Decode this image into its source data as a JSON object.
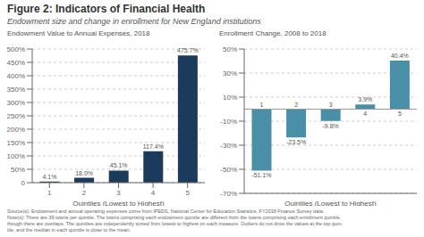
{
  "title": "Figure 2: Indicators of Financial Health",
  "subtitle": "Endowment size and change in enrollment for New England institutions",
  "annotations": [
    "Source(s): Endowment and annual operating expenses come from IPEDS, National Center for Education Statistics, FY2018 Finance Survey data.",
    "Note(s): There are 39 towns per quintile. The towns comprising each endowment quintile are different from the towns comprising each enrollment quintile,",
    "though there are overlaps. The quintiles are independently sorted from lowest to highest on each measure. Outliers do not drive the values at the top quin-",
    "tile, and the median in each quintile is close to the mean."
  ],
  "chart_data": [
    {
      "type": "bar",
      "title": "Endowment Value to Annual Expenses, 2018",
      "xlabel": "Quintiles (Lowest to Highest)",
      "categories": [
        "1",
        "2",
        "3",
        "4",
        "5"
      ],
      "values": [
        4.1,
        18.0,
        45.1,
        117.4,
        475.7
      ],
      "value_labels": [
        "4.1%",
        "18.0%",
        "45.1%",
        "117.4%",
        "475.7%"
      ],
      "color": "#1b3a5c",
      "ylim": [
        0,
        500
      ],
      "yticks": [
        0,
        {
          "value": 50,
          "label": "50%"
        },
        {
          "value": 100,
          "label": "100%"
        },
        {
          "value": 150,
          "label": "150%"
        },
        {
          "value": 200,
          "label": "200%"
        },
        {
          "value": 250,
          "label": "250%"
        },
        {
          "value": 300,
          "label": "300%"
        },
        {
          "value": 350,
          "label": "350%"
        },
        {
          "value": 400,
          "label": "400%"
        },
        {
          "value": 450,
          "label": "450%"
        },
        {
          "value": 500,
          "label": "500%"
        }
      ],
      "grid": true,
      "data_labels": true
    },
    {
      "type": "bar",
      "title": "Enrollment Change, 2008 to 2018",
      "xlabel": "Quintiles (Lowest to Highest)",
      "categories": [
        "1",
        "2",
        "3",
        "4",
        "5"
      ],
      "values": [
        -51.1,
        -23.5,
        -9.8,
        3.9,
        40.4
      ],
      "value_labels": [
        "-51.1%",
        "-23.5%",
        "-9.8%",
        "3.9%",
        "40.4%"
      ],
      "color": "#4a8fa8",
      "ylim": [
        -70,
        50
      ],
      "yticks": [
        {
          "value": -70,
          "label": "-70%"
        },
        {
          "value": -50,
          "label": "-50%"
        },
        {
          "value": -30,
          "label": "-30%"
        },
        {
          "value": -10,
          "label": "-10%"
        },
        {
          "value": 10,
          "label": "10%"
        },
        {
          "value": 30,
          "label": "30%"
        },
        {
          "value": 50,
          "label": "50%"
        }
      ],
      "grid": true,
      "data_labels": true,
      "tick_labels": "y"
    }
  ]
}
